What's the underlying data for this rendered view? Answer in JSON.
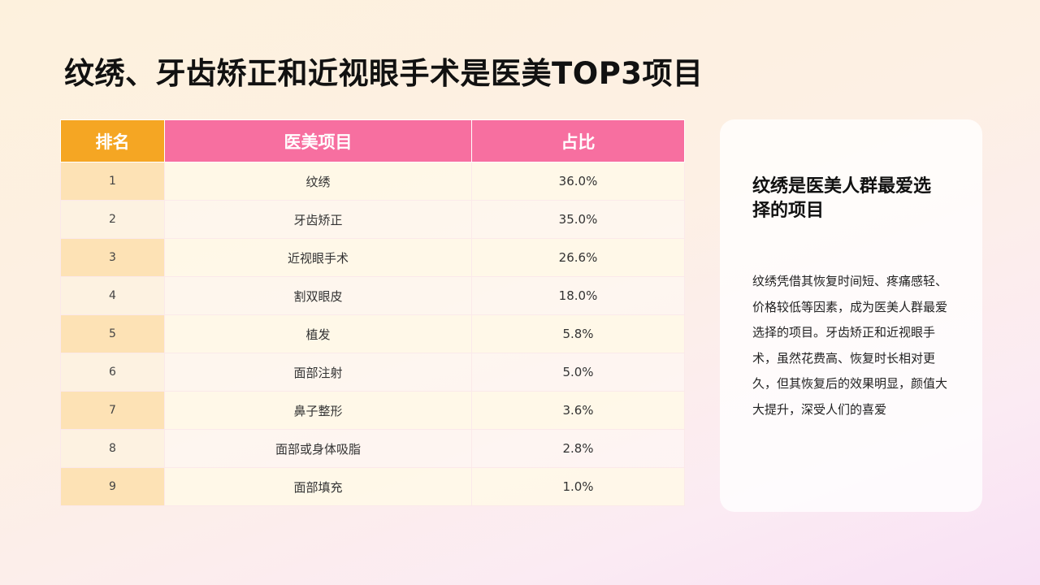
{
  "page": {
    "title": "纹绣、牙齿矫正和近视眼手术是医美TOP3项目"
  },
  "table": {
    "headers": {
      "rank": "排名",
      "item": "医美项目",
      "share": "占比"
    },
    "rows": [
      {
        "rank": "1",
        "item": "纹绣",
        "share": "36.0%"
      },
      {
        "rank": "2",
        "item": "牙齿矫正",
        "share": "35.0%"
      },
      {
        "rank": "3",
        "item": "近视眼手术",
        "share": "26.6%"
      },
      {
        "rank": "4",
        "item": "割双眼皮",
        "share": "18.0%"
      },
      {
        "rank": "5",
        "item": "植发",
        "share": "5.8%"
      },
      {
        "rank": "6",
        "item": "面部注射",
        "share": "5.0%"
      },
      {
        "rank": "7",
        "item": "鼻子整形",
        "share": "3.6%"
      },
      {
        "rank": "8",
        "item": "面部或身体吸脂",
        "share": "2.8%"
      },
      {
        "rank": "9",
        "item": "面部填充",
        "share": "1.0%"
      }
    ]
  },
  "insight": {
    "title": "纹绣是医美人群最爱选择的项目",
    "body": "纹绣凭借其恢复时间短、疼痛感轻、价格较低等因素，成为医美人群最爱选择的项目。牙齿矫正和近视眼手术，虽然花费高、恢复时长相对更久，但其恢复后的效果明显，颜值大大提升，深受人们的喜爱"
  },
  "colors": {
    "rank_header": "#f5a623",
    "pink_header": "#f76fa0",
    "rank_cell_odd": "#fde2b5",
    "rank_cell_even": "#fdf2e1"
  }
}
